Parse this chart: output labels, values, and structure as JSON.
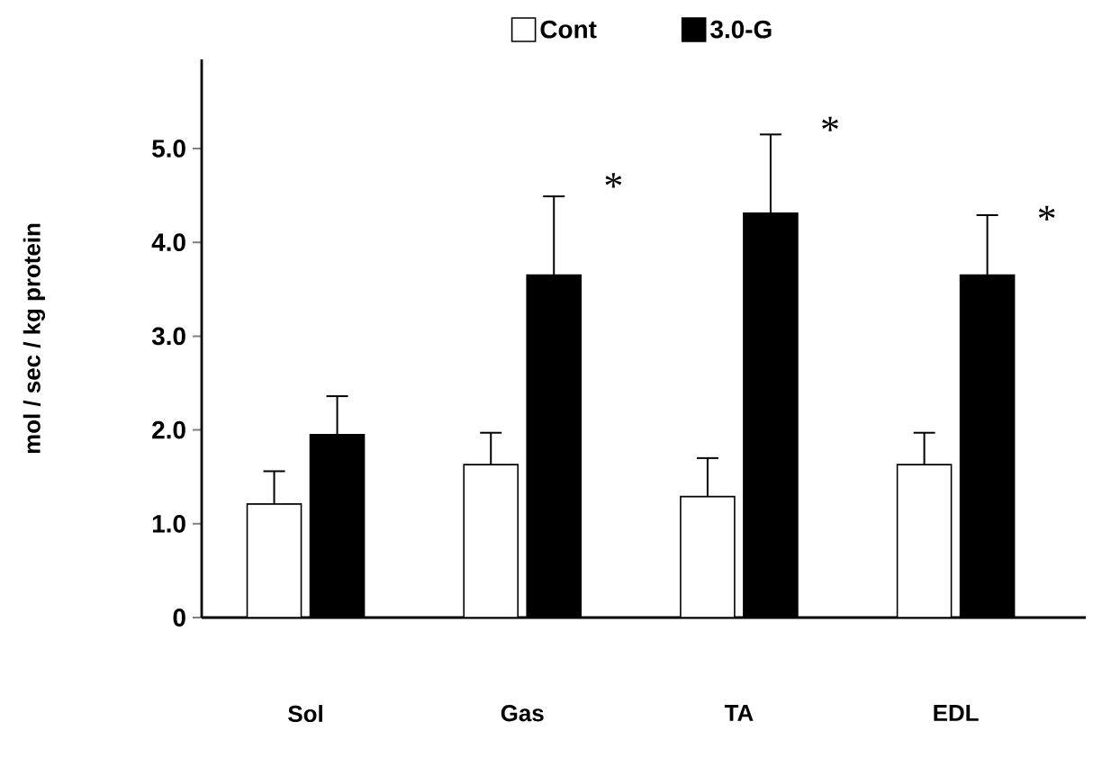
{
  "chart_data": {
    "type": "bar",
    "ylabel": "mol / sec / kg protein",
    "categories": [
      "Sol",
      "Gas",
      "TA",
      "EDL"
    ],
    "series": [
      {
        "name": "Cont",
        "color": "#ffffff",
        "values": [
          1.21,
          1.63,
          1.29,
          1.63
        ],
        "errors": [
          [
            1.21,
            1.56
          ],
          [
            1.63,
            1.97
          ],
          [
            1.29,
            1.7
          ],
          [
            1.63,
            1.97
          ]
        ]
      },
      {
        "name": "3.0-G",
        "color": "#000000",
        "values": [
          1.95,
          3.65,
          4.31,
          3.65
        ],
        "errors": [
          [
            1.95,
            2.36
          ],
          [
            3.65,
            4.49
          ],
          [
            4.31,
            5.15
          ],
          [
            3.65,
            4.29
          ]
        ]
      }
    ],
    "ylim": [
      0,
      5.95
    ],
    "yticks": [
      0,
      {
        "value": 1,
        "label": "1.0"
      },
      {
        "value": 2,
        "label": "2.0"
      },
      {
        "value": 3,
        "label": "3.0"
      },
      {
        "value": 4,
        "label": "4.0"
      },
      {
        "value": 5,
        "label": "5.0"
      }
    ],
    "annotations": [
      "*",
      "*",
      "*"
    ],
    "legend": "top",
    "grid": false
  }
}
